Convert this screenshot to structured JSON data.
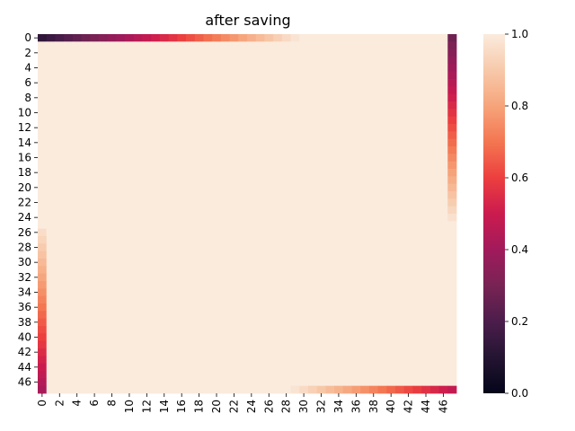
{
  "chart_data": {
    "type": "heatmap",
    "title": "after saving",
    "rows": 48,
    "cols": 48,
    "x_tick_labels": [
      "0",
      "2",
      "4",
      "6",
      "8",
      "10",
      "12",
      "14",
      "16",
      "18",
      "20",
      "22",
      "24",
      "26",
      "28",
      "30",
      "32",
      "34",
      "36",
      "38",
      "40",
      "42",
      "44",
      "46"
    ],
    "y_tick_labels": [
      "0",
      "2",
      "4",
      "6",
      "8",
      "10",
      "12",
      "14",
      "16",
      "18",
      "20",
      "22",
      "24",
      "26",
      "28",
      "30",
      "32",
      "34",
      "36",
      "38",
      "40",
      "42",
      "44",
      "46"
    ],
    "colorbar": {
      "min": 0.0,
      "max": 1.0,
      "tick_labels": [
        "0.0",
        "0.2",
        "0.4",
        "0.6",
        "0.8",
        "1.0"
      ],
      "colormap": "rocket"
    },
    "background_value": 1.0,
    "edges": {
      "top_row": {
        "row": 0,
        "cols_from": 0,
        "cols_to": 29,
        "values_from": 0.13,
        "values_to": 0.98
      },
      "right_col": {
        "col": 47,
        "rows_from": 0,
        "rows_to": 24,
        "values_from": 0.28,
        "values_to": 0.97
      },
      "bottom_row": {
        "row": 47,
        "cols_from": 29,
        "cols_to": 47,
        "values_from": 0.98,
        "values_to": 0.48
      },
      "left_col": {
        "col": 0,
        "rows_from": 26,
        "rows_to": 47,
        "values_from": 0.96,
        "values_to": 0.42
      }
    },
    "colors": [
      "#03051a",
      "#241432",
      "#4c1d4b",
      "#782354",
      "#a11a5b",
      "#cb1b4f",
      "#ec3f3f",
      "#f37651",
      "#f6a47b",
      "#f7c9aa",
      "#faebdd"
    ]
  }
}
